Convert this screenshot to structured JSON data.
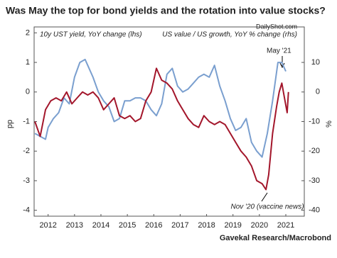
{
  "chart_data": {
    "type": "line",
    "title": "Was May the top for bond yields and the rotation into value stocks?",
    "y_label": "pp",
    "y2_label": "%",
    "xlim": [
      2011.97,
      2022.2
    ],
    "xticks": [
      {
        "value": 2012.5,
        "label": "2012"
      },
      {
        "value": 2013.5,
        "label": "2013"
      },
      {
        "value": 2014.5,
        "label": "2014"
      },
      {
        "value": 2015.5,
        "label": "2015"
      },
      {
        "value": 2016.5,
        "label": "2016"
      },
      {
        "value": 2017.5,
        "label": "2017"
      },
      {
        "value": 2018.5,
        "label": "2018"
      },
      {
        "value": 2019.5,
        "label": "2019"
      },
      {
        "value": 2020.5,
        "label": "2020"
      },
      {
        "value": 2021.5,
        "label": "2021"
      }
    ],
    "ylim": [
      -4.2,
      2.2
    ],
    "yticks": [
      -4,
      -3,
      -2,
      -1,
      0,
      1,
      2
    ],
    "y2lim": [
      -42,
      22
    ],
    "y2ticks": [
      -40,
      -30,
      -20,
      -10,
      0,
      10
    ],
    "series": [
      {
        "name": "10y UST yield, YoY change (lhs)",
        "color": "#7a9fcf",
        "x": [
          2012.0,
          2012.2,
          2012.4,
          2012.5,
          2012.7,
          2012.9,
          2013.1,
          2013.3,
          2013.5,
          2013.7,
          2013.9,
          2014.0,
          2014.2,
          2014.4,
          2014.6,
          2014.8,
          2015.0,
          2015.2,
          2015.4,
          2015.6,
          2015.8,
          2016.0,
          2016.2,
          2016.4,
          2016.6,
          2016.8,
          2017.0,
          2017.2,
          2017.4,
          2017.6,
          2017.8,
          2018.0,
          2018.2,
          2018.4,
          2018.6,
          2018.8,
          2019.0,
          2019.2,
          2019.4,
          2019.6,
          2019.8,
          2020.0,
          2020.2,
          2020.4,
          2020.6,
          2020.8,
          2021.0,
          2021.2,
          2021.35,
          2021.5
        ],
        "values": [
          -1.4,
          -1.5,
          -1.6,
          -1.2,
          -0.9,
          -0.7,
          -0.2,
          -0.4,
          0.5,
          1.0,
          1.1,
          0.9,
          0.5,
          0.0,
          -0.3,
          -0.5,
          -1.0,
          -0.9,
          -0.3,
          -0.3,
          -0.2,
          -0.2,
          -0.3,
          -0.6,
          -0.8,
          -0.4,
          0.6,
          0.8,
          0.2,
          0.0,
          0.1,
          0.3,
          0.5,
          0.6,
          0.5,
          0.9,
          0.2,
          -0.3,
          -0.9,
          -1.3,
          -1.2,
          -0.9,
          -1.7,
          -2.0,
          -2.2,
          -1.4,
          -0.3,
          1.0,
          1.0,
          0.7
        ]
      },
      {
        "name": "US value / US growth, YoY % change (rhs)",
        "color": "#a3162b",
        "axis": "y2",
        "x": [
          2012.0,
          2012.2,
          2012.4,
          2012.6,
          2012.8,
          2013.0,
          2013.2,
          2013.4,
          2013.6,
          2013.8,
          2014.0,
          2014.2,
          2014.4,
          2014.6,
          2014.8,
          2015.0,
          2015.2,
          2015.4,
          2015.6,
          2015.8,
          2016.0,
          2016.2,
          2016.4,
          2016.6,
          2016.8,
          2017.0,
          2017.2,
          2017.4,
          2017.6,
          2017.8,
          2018.0,
          2018.2,
          2018.4,
          2018.6,
          2018.8,
          2019.0,
          2019.2,
          2019.4,
          2019.6,
          2019.8,
          2020.0,
          2020.2,
          2020.4,
          2020.6,
          2020.75,
          2020.85,
          2021.0,
          2021.15,
          2021.25,
          2021.35,
          2021.45,
          2021.55,
          2021.6
        ],
        "values": [
          -10,
          -15,
          -6,
          -3,
          -2,
          -3,
          0,
          -4,
          -2,
          0,
          -1,
          0,
          -2,
          -6,
          -4,
          -2,
          -8,
          -9,
          -8,
          -10,
          -9,
          -3,
          0,
          8,
          4,
          3,
          1,
          -3,
          -6,
          -9,
          -11,
          -12,
          -8,
          -10,
          -11,
          -10,
          -11,
          -14,
          -17,
          -20,
          -22,
          -25,
          -30,
          -31,
          -33,
          -28,
          -14,
          -5,
          0,
          3,
          -2,
          -7,
          0
        ]
      }
    ],
    "annotations": [
      "May '21",
      "Nov '20 (vaccine news)"
    ],
    "watermark": "DailyShot.com",
    "source": "Gavekal Research/Macrobond"
  }
}
